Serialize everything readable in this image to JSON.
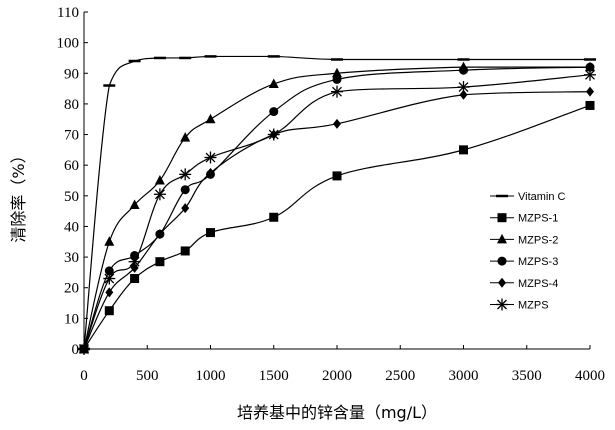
{
  "chart_data": {
    "type": "line",
    "title": "",
    "xlabel": "培养基中的锌含量（mg/L）",
    "ylabel": "清除率（%）",
    "xlim": [
      0,
      4000
    ],
    "ylim": [
      0,
      110
    ],
    "xticks": [
      0,
      500,
      1000,
      1500,
      2000,
      2500,
      3000,
      3500,
      4000
    ],
    "yticks": [
      0,
      10,
      20,
      30,
      40,
      50,
      60,
      70,
      80,
      90,
      100,
      110
    ],
    "grid": false,
    "legend_position": "right",
    "series": [
      {
        "name": "Vitamin C",
        "marker": "dash",
        "x": [
          0,
          200,
          400,
          600,
          800,
          1000,
          1500,
          2000,
          3000,
          4000
        ],
        "y": [
          0,
          86,
          94,
          95,
          95,
          95.5,
          95.5,
          94.5,
          94.5,
          94.5
        ]
      },
      {
        "name": "MZPS-1",
        "marker": "square",
        "x": [
          0,
          200,
          400,
          600,
          800,
          1000,
          1500,
          2000,
          3000,
          4000
        ],
        "y": [
          0,
          12.5,
          23,
          28.5,
          32,
          38,
          43,
          56.5,
          65,
          79.5
        ]
      },
      {
        "name": "MZPS-2",
        "marker": "triangle",
        "x": [
          0,
          200,
          400,
          600,
          800,
          1000,
          1500,
          2000,
          3000,
          4000
        ],
        "y": [
          0,
          35,
          47,
          55,
          69,
          75,
          86.5,
          90,
          92,
          92
        ]
      },
      {
        "name": "MZPS-3",
        "marker": "circle",
        "x": [
          0,
          200,
          400,
          600,
          800,
          1000,
          1500,
          2000,
          3000,
          4000
        ],
        "y": [
          0,
          25.5,
          30.5,
          37.5,
          52,
          57,
          77.5,
          88,
          91,
          92
        ]
      },
      {
        "name": "MZPS-4",
        "marker": "diamond",
        "x": [
          0,
          200,
          400,
          600,
          800,
          1000,
          1500,
          2000,
          3000,
          4000
        ],
        "y": [
          0,
          18.5,
          26.5,
          37.5,
          46,
          57.5,
          70,
          73.5,
          83,
          84
        ]
      },
      {
        "name": "MZPS",
        "marker": "asterisk",
        "x": [
          0,
          200,
          400,
          600,
          800,
          1000,
          1500,
          2000,
          3000,
          4000
        ],
        "y": [
          0,
          23,
          28.5,
          50.5,
          57,
          62.5,
          70,
          84,
          85.5,
          89.5
        ]
      }
    ]
  }
}
